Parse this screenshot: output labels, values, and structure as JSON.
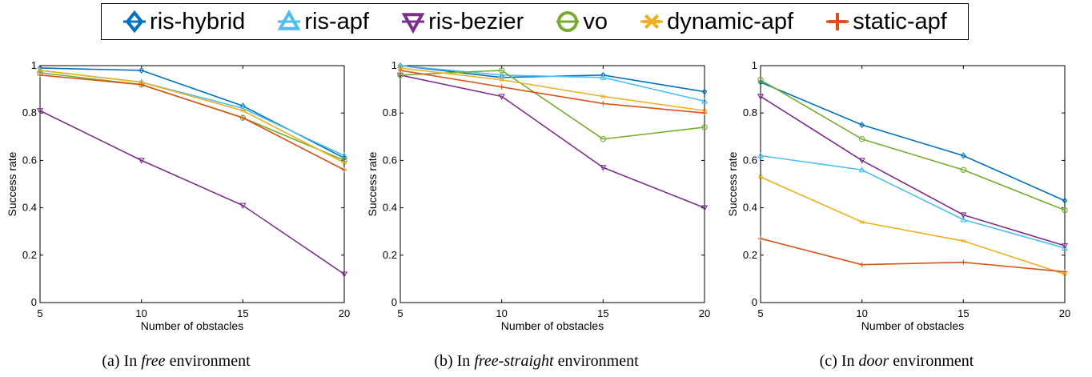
{
  "legend": {
    "items": [
      {
        "label": "ris-hybrid",
        "color": "#0072BD",
        "marker": "diamond"
      },
      {
        "label": "ris-apf",
        "color": "#4DBEEE",
        "marker": "triangle-up"
      },
      {
        "label": "ris-bezier",
        "color": "#7E2F8E",
        "marker": "triangle-down"
      },
      {
        "label": "vo",
        "color": "#77AC30",
        "marker": "circle"
      },
      {
        "label": "dynamic-apf",
        "color": "#EDB120",
        "marker": "asterisk"
      },
      {
        "label": "static-apf",
        "color": "#D95319",
        "marker": "plus"
      }
    ]
  },
  "captions": [
    {
      "prefix": "(a) In ",
      "em": "free",
      "suffix": " environment"
    },
    {
      "prefix": "(b) In ",
      "em": "free-straight",
      "suffix": " environment"
    },
    {
      "prefix": "(c) In ",
      "em": "door",
      "suffix": " environment"
    }
  ],
  "chart_data": [
    {
      "type": "line",
      "xlabel": "Number of obstacles",
      "ylabel": "Success rate",
      "x": [
        5,
        10,
        15,
        20
      ],
      "xlim": [
        5,
        20
      ],
      "ylim": [
        0,
        1
      ],
      "xticks": [
        "5",
        "10",
        "15",
        "20"
      ],
      "yticks": [
        "0",
        "0.2",
        "0.4",
        "0.6",
        "0.8",
        "1"
      ],
      "grid": false,
      "series": [
        {
          "name": "ris-hybrid",
          "values": [
            0.99,
            0.98,
            0.83,
            0.61
          ]
        },
        {
          "name": "ris-apf",
          "values": [
            0.98,
            0.93,
            0.82,
            0.62
          ]
        },
        {
          "name": "ris-bezier",
          "values": [
            0.81,
            0.6,
            0.41,
            0.12
          ]
        },
        {
          "name": "vo",
          "values": [
            0.97,
            0.92,
            0.78,
            0.6
          ]
        },
        {
          "name": "dynamic-apf",
          "values": [
            0.98,
            0.93,
            0.81,
            0.59
          ]
        },
        {
          "name": "static-apf",
          "values": [
            0.96,
            0.92,
            0.78,
            0.56
          ]
        }
      ]
    },
    {
      "type": "line",
      "xlabel": "Number of obstacles",
      "ylabel": "Success rate",
      "x": [
        5,
        10,
        15,
        20
      ],
      "xlim": [
        5,
        20
      ],
      "ylim": [
        0,
        1
      ],
      "xticks": [
        "5",
        "10",
        "15",
        "20"
      ],
      "yticks": [
        "0",
        "0.2",
        "0.4",
        "0.6",
        "0.8",
        "1"
      ],
      "grid": false,
      "series": [
        {
          "name": "ris-hybrid",
          "values": [
            1.0,
            0.95,
            0.96,
            0.89
          ]
        },
        {
          "name": "ris-apf",
          "values": [
            1.0,
            0.96,
            0.95,
            0.85
          ]
        },
        {
          "name": "ris-bezier",
          "values": [
            0.96,
            0.87,
            0.57,
            0.4
          ]
        },
        {
          "name": "vo",
          "values": [
            0.96,
            0.98,
            0.69,
            0.74
          ]
        },
        {
          "name": "dynamic-apf",
          "values": [
            0.99,
            0.94,
            0.87,
            0.81
          ]
        },
        {
          "name": "static-apf",
          "values": [
            0.98,
            0.91,
            0.84,
            0.8
          ]
        }
      ]
    },
    {
      "type": "line",
      "xlabel": "Number of obstacles",
      "ylabel": "Success rate",
      "x": [
        5,
        10,
        15,
        20
      ],
      "xlim": [
        5,
        20
      ],
      "ylim": [
        0,
        1
      ],
      "xticks": [
        "5",
        "10",
        "15",
        "20"
      ],
      "yticks": [
        "0",
        "0.2",
        "0.4",
        "0.6",
        "0.8",
        "1"
      ],
      "grid": false,
      "series": [
        {
          "name": "ris-hybrid",
          "values": [
            0.93,
            0.75,
            0.62,
            0.43
          ]
        },
        {
          "name": "ris-apf",
          "values": [
            0.62,
            0.56,
            0.35,
            0.23
          ]
        },
        {
          "name": "ris-bezier",
          "values": [
            0.87,
            0.6,
            0.37,
            0.24
          ]
        },
        {
          "name": "vo",
          "values": [
            0.94,
            0.69,
            0.56,
            0.39
          ]
        },
        {
          "name": "dynamic-apf",
          "values": [
            0.53,
            0.34,
            0.26,
            0.12
          ]
        },
        {
          "name": "static-apf",
          "values": [
            0.27,
            0.16,
            0.17,
            0.13
          ]
        }
      ]
    }
  ]
}
